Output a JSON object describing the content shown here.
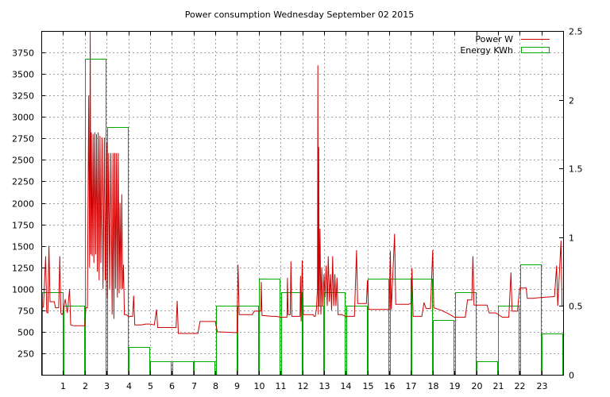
{
  "chart_data": {
    "type": "line",
    "title": "Power consumption Wednesday September 02 2015",
    "xlabel": "",
    "ylabel": "",
    "y2label": "",
    "xlim": [
      0,
      24
    ],
    "ylim": [
      0,
      4000
    ],
    "y2lim": [
      0,
      2.5
    ],
    "x_ticks": [
      1,
      2,
      3,
      4,
      5,
      6,
      7,
      8,
      9,
      10,
      11,
      12,
      13,
      14,
      15,
      16,
      17,
      18,
      19,
      20,
      21,
      22,
      23
    ],
    "y_ticks": [
      250,
      500,
      750,
      1000,
      1250,
      1500,
      1750,
      2000,
      2250,
      2500,
      2750,
      3000,
      3250,
      3500,
      3750
    ],
    "y2_ticks": [
      0,
      0.5,
      1,
      1.5,
      2,
      2.5
    ],
    "y2_tick_labels": [
      "0",
      "0.5",
      "1",
      "1.5",
      "2",
      "2.5"
    ],
    "grid": true,
    "legend_position": "top-right",
    "series": [
      {
        "name": "Power W",
        "axis": "y",
        "kind": "line",
        "color": "#cc0000",
        "points": [
          [
            0.0,
            780
          ],
          [
            0.1,
            790
          ],
          [
            0.2,
            1380
          ],
          [
            0.25,
            730
          ],
          [
            0.3,
            720
          ],
          [
            0.35,
            1500
          ],
          [
            0.4,
            850
          ],
          [
            0.6,
            850
          ],
          [
            0.65,
            780
          ],
          [
            0.8,
            780
          ],
          [
            0.85,
            1380
          ],
          [
            0.9,
            720
          ],
          [
            0.95,
            700
          ],
          [
            1.0,
            720
          ],
          [
            1.1,
            880
          ],
          [
            1.2,
            720
          ],
          [
            1.3,
            1000
          ],
          [
            1.35,
            580
          ],
          [
            1.5,
            570
          ],
          [
            1.8,
            570
          ],
          [
            2.0,
            570
          ],
          [
            2.05,
            780
          ],
          [
            2.12,
            780
          ],
          [
            2.18,
            3250
          ],
          [
            2.22,
            1250
          ],
          [
            2.25,
            4000
          ],
          [
            2.28,
            1400
          ],
          [
            2.3,
            2820
          ],
          [
            2.34,
            1380
          ],
          [
            2.38,
            2800
          ],
          [
            2.42,
            1300
          ],
          [
            2.46,
            2820
          ],
          [
            2.5,
            1400
          ],
          [
            2.54,
            2800
          ],
          [
            2.58,
            1200
          ],
          [
            2.62,
            2820
          ],
          [
            2.66,
            1100
          ],
          [
            2.7,
            2780
          ],
          [
            2.74,
            1300
          ],
          [
            2.8,
            2760
          ],
          [
            2.84,
            1000
          ],
          [
            2.9,
            2760
          ],
          [
            2.94,
            1100
          ],
          [
            3.0,
            2700
          ],
          [
            3.04,
            900
          ],
          [
            3.1,
            2580
          ],
          [
            3.14,
            1000
          ],
          [
            3.2,
            2580
          ],
          [
            3.26,
            700
          ],
          [
            3.3,
            2580
          ],
          [
            3.34,
            650
          ],
          [
            3.38,
            2580
          ],
          [
            3.42,
            1000
          ],
          [
            3.46,
            2580
          ],
          [
            3.5,
            900
          ],
          [
            3.54,
            2580
          ],
          [
            3.58,
            950
          ],
          [
            3.62,
            2000
          ],
          [
            3.66,
            1000
          ],
          [
            3.7,
            2100
          ],
          [
            3.74,
            1000
          ],
          [
            3.78,
            1280
          ],
          [
            3.82,
            700
          ],
          [
            3.9,
            700
          ],
          [
            4.0,
            680
          ],
          [
            4.2,
            680
          ],
          [
            4.25,
            920
          ],
          [
            4.3,
            580
          ],
          [
            4.6,
            580
          ],
          [
            4.8,
            590
          ],
          [
            5.0,
            590
          ],
          [
            5.2,
            580
          ],
          [
            5.3,
            760
          ],
          [
            5.35,
            550
          ],
          [
            6.0,
            550
          ],
          [
            6.2,
            550
          ],
          [
            6.25,
            860
          ],
          [
            6.3,
            480
          ],
          [
            7.0,
            480
          ],
          [
            7.2,
            480
          ],
          [
            7.3,
            620
          ],
          [
            8.0,
            620
          ],
          [
            8.1,
            500
          ],
          [
            9.0,
            490
          ],
          [
            9.05,
            1280
          ],
          [
            9.1,
            700
          ],
          [
            9.5,
            700
          ],
          [
            9.7,
            700
          ],
          [
            9.8,
            740
          ],
          [
            10.1,
            740
          ],
          [
            10.12,
            1080
          ],
          [
            10.15,
            690
          ],
          [
            10.6,
            680
          ],
          [
            10.8,
            680
          ],
          [
            11.0,
            670
          ],
          [
            11.3,
            670
          ],
          [
            11.32,
            1130
          ],
          [
            11.35,
            700
          ],
          [
            11.45,
            700
          ],
          [
            11.48,
            1320
          ],
          [
            11.52,
            680
          ],
          [
            11.9,
            680
          ],
          [
            11.92,
            1150
          ],
          [
            11.95,
            620
          ],
          [
            12.0,
            1330
          ],
          [
            12.05,
            700
          ],
          [
            12.3,
            700
          ],
          [
            12.5,
            700
          ],
          [
            12.55,
            680
          ],
          [
            12.6,
            680
          ],
          [
            12.65,
            760
          ],
          [
            12.7,
            1000
          ],
          [
            12.72,
            3600
          ],
          [
            12.74,
            700
          ],
          [
            12.76,
            2650
          ],
          [
            12.78,
            800
          ],
          [
            12.82,
            1700
          ],
          [
            12.86,
            700
          ],
          [
            12.9,
            1250
          ],
          [
            12.95,
            800
          ],
          [
            13.0,
            1170
          ],
          [
            13.05,
            900
          ],
          [
            13.1,
            1270
          ],
          [
            13.15,
            800
          ],
          [
            13.2,
            1380
          ],
          [
            13.25,
            850
          ],
          [
            13.3,
            1170
          ],
          [
            13.35,
            750
          ],
          [
            13.4,
            1380
          ],
          [
            13.45,
            800
          ],
          [
            13.5,
            1170
          ],
          [
            13.55,
            800
          ],
          [
            13.6,
            1130
          ],
          [
            13.65,
            700
          ],
          [
            13.8,
            700
          ],
          [
            14.0,
            680
          ],
          [
            14.4,
            680
          ],
          [
            14.5,
            1450
          ],
          [
            14.55,
            830
          ],
          [
            14.95,
            830
          ],
          [
            15.0,
            1100
          ],
          [
            15.05,
            760
          ],
          [
            15.4,
            760
          ],
          [
            16.0,
            760
          ],
          [
            16.05,
            1440
          ],
          [
            16.1,
            760
          ],
          [
            16.25,
            1640
          ],
          [
            16.3,
            820
          ],
          [
            16.9,
            820
          ],
          [
            17.0,
            830
          ],
          [
            17.05,
            1240
          ],
          [
            17.1,
            680
          ],
          [
            17.5,
            680
          ],
          [
            17.6,
            840
          ],
          [
            17.7,
            770
          ],
          [
            17.9,
            770
          ],
          [
            18.0,
            1450
          ],
          [
            18.05,
            780
          ],
          [
            18.4,
            750
          ],
          [
            18.8,
            700
          ],
          [
            19.0,
            670
          ],
          [
            19.5,
            670
          ],
          [
            19.6,
            870
          ],
          [
            19.8,
            870
          ],
          [
            19.85,
            1380
          ],
          [
            19.9,
            810
          ],
          [
            20.3,
            810
          ],
          [
            20.5,
            810
          ],
          [
            20.6,
            720
          ],
          [
            20.9,
            720
          ],
          [
            21.2,
            670
          ],
          [
            21.5,
            670
          ],
          [
            21.6,
            1190
          ],
          [
            21.65,
            740
          ],
          [
            21.9,
            740
          ],
          [
            22.0,
            1010
          ],
          [
            22.3,
            1010
          ],
          [
            22.35,
            890
          ],
          [
            22.6,
            890
          ],
          [
            23.0,
            900
          ],
          [
            23.6,
            910
          ],
          [
            23.7,
            1270
          ],
          [
            23.75,
            800
          ],
          [
            23.9,
            1560
          ],
          [
            23.95,
            800
          ],
          [
            24.0,
            800
          ]
        ]
      },
      {
        "name": "Energy KWh",
        "axis": "y2",
        "kind": "hour-bars",
        "color": "#00aa00",
        "points": [
          [
            0.5,
            0.6
          ],
          [
            1.5,
            0.5
          ],
          [
            2.5,
            2.3
          ],
          [
            3.5,
            1.8
          ],
          [
            4.5,
            0.2
          ],
          [
            5.5,
            0.1
          ],
          [
            6.5,
            0.1
          ],
          [
            7.5,
            0.1
          ],
          [
            8.5,
            0.5
          ],
          [
            9.5,
            0.5
          ],
          [
            10.5,
            0.7
          ],
          [
            11.5,
            0.6
          ],
          [
            12.5,
            0.5
          ],
          [
            13.5,
            0.6
          ],
          [
            14.5,
            0.5
          ],
          [
            15.5,
            0.7
          ],
          [
            16.5,
            0.7
          ],
          [
            17.5,
            0.7
          ],
          [
            18.5,
            0.4
          ],
          [
            19.5,
            0.6
          ],
          [
            20.5,
            0.1
          ],
          [
            21.5,
            0.5
          ],
          [
            22.5,
            0.8
          ],
          [
            23.5,
            0.3
          ]
        ]
      }
    ]
  }
}
